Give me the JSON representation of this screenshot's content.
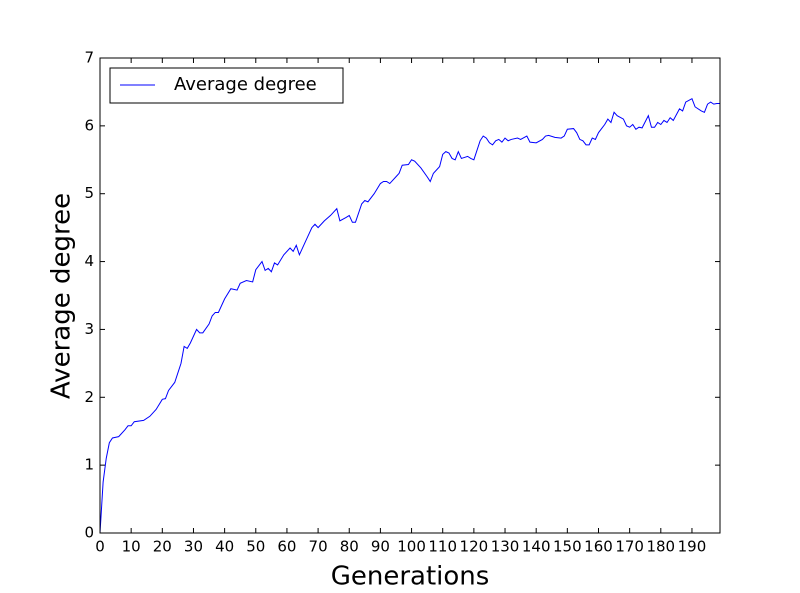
{
  "chart_data": {
    "type": "line",
    "xlabel": "Generations",
    "ylabel": "Average degree",
    "x": [
      0,
      1,
      2,
      3,
      4,
      6,
      8,
      9,
      10,
      11,
      14,
      16,
      18,
      20,
      21,
      22,
      24,
      26,
      27,
      28,
      29,
      31,
      32,
      33,
      35,
      36,
      37,
      38,
      40,
      42,
      44,
      45,
      47,
      49,
      50,
      52,
      53,
      54,
      55,
      56,
      57,
      59,
      61,
      62,
      63,
      64,
      66,
      68,
      69,
      70,
      72,
      74,
      76,
      77,
      79,
      80,
      81,
      82,
      84,
      85,
      86,
      88,
      90,
      91,
      92,
      93,
      95,
      96,
      97,
      99,
      100,
      101,
      103,
      105,
      106,
      107,
      109,
      110,
      111,
      112,
      113,
      114,
      115,
      116,
      118,
      119,
      120,
      122,
      123,
      124,
      125,
      126,
      127,
      128,
      129,
      130,
      131,
      132,
      134,
      135,
      137,
      138,
      140,
      142,
      143,
      144,
      146,
      148,
      149,
      150,
      152,
      153,
      154,
      155,
      156,
      157,
      158,
      159,
      160,
      162,
      163,
      164,
      165,
      166,
      168,
      169,
      170,
      171,
      172,
      173,
      174,
      176,
      177,
      178,
      179,
      180,
      181,
      182,
      183,
      184,
      186,
      187,
      188,
      190,
      191,
      193,
      194,
      195,
      196,
      197,
      198,
      199
    ],
    "series": [
      {
        "name": "Average degree",
        "color": "#0000ff",
        "values": [
          0,
          0.75,
          1.1,
          1.33,
          1.4,
          1.42,
          1.52,
          1.58,
          1.58,
          1.64,
          1.66,
          1.72,
          1.82,
          1.97,
          1.98,
          2.1,
          2.22,
          2.5,
          2.75,
          2.72,
          2.8,
          3.0,
          2.95,
          2.95,
          3.08,
          3.2,
          3.25,
          3.25,
          3.45,
          3.6,
          3.58,
          3.68,
          3.72,
          3.7,
          3.88,
          4.0,
          3.87,
          3.9,
          3.85,
          3.98,
          3.95,
          4.1,
          4.2,
          4.15,
          4.24,
          4.1,
          4.3,
          4.5,
          4.55,
          4.5,
          4.6,
          4.68,
          4.78,
          4.6,
          4.65,
          4.68,
          4.58,
          4.58,
          4.85,
          4.9,
          4.88,
          5.0,
          5.15,
          5.18,
          5.18,
          5.15,
          5.25,
          5.3,
          5.42,
          5.43,
          5.5,
          5.48,
          5.38,
          5.25,
          5.18,
          5.3,
          5.4,
          5.58,
          5.62,
          5.6,
          5.52,
          5.5,
          5.62,
          5.52,
          5.55,
          5.52,
          5.5,
          5.78,
          5.85,
          5.82,
          5.75,
          5.72,
          5.78,
          5.8,
          5.76,
          5.82,
          5.78,
          5.8,
          5.82,
          5.8,
          5.85,
          5.76,
          5.75,
          5.8,
          5.85,
          5.86,
          5.83,
          5.82,
          5.85,
          5.95,
          5.96,
          5.9,
          5.8,
          5.78,
          5.72,
          5.72,
          5.82,
          5.8,
          5.9,
          6.02,
          6.1,
          6.05,
          6.2,
          6.15,
          6.1,
          6.0,
          5.98,
          6.02,
          5.95,
          5.98,
          5.97,
          6.15,
          5.98,
          5.98,
          6.05,
          6.02,
          6.08,
          6.05,
          6.12,
          6.08,
          6.25,
          6.22,
          6.35,
          6.4,
          6.28,
          6.22,
          6.2,
          6.32,
          6.35,
          6.32,
          6.33,
          6.33
        ]
      }
    ],
    "xlim": [
      0,
      199
    ],
    "ylim": [
      0,
      7
    ],
    "xticks": [
      0,
      10,
      20,
      30,
      40,
      50,
      60,
      70,
      80,
      90,
      100,
      110,
      120,
      130,
      140,
      150,
      160,
      170,
      180,
      190
    ],
    "yticks": [
      0,
      1,
      2,
      3,
      4,
      5,
      6,
      7
    ],
    "legend": "upper left"
  }
}
